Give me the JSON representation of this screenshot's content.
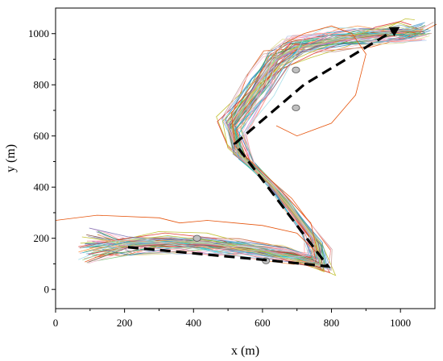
{
  "chart_data": {
    "type": "line",
    "title": "",
    "xlabel": "x (m)",
    "ylabel": "y (m)",
    "xlim": [
      0,
      1100
    ],
    "ylim": [
      -75,
      1100
    ],
    "x_ticks": [
      0,
      200,
      400,
      600,
      800,
      1000
    ],
    "y_ticks": [
      0,
      200,
      400,
      600,
      800,
      1000
    ],
    "x_tick_labels": [
      "0",
      "200",
      "400",
      "600",
      "800",
      "1000"
    ],
    "y_tick_labels": [
      "0",
      "200",
      "400",
      "600",
      "800",
      "1000"
    ],
    "grid": false,
    "legend": "none",
    "obstacles": [
      {
        "x": 410,
        "y": 200,
        "rx": 24,
        "ry": 26
      },
      {
        "x": 610,
        "y": 112,
        "rx": 24,
        "ry": 26
      },
      {
        "x": 697,
        "y": 858,
        "rx": 24,
        "ry": 26
      },
      {
        "x": 697,
        "y": 710,
        "rx": 24,
        "ry": 26
      }
    ],
    "reference_path": {
      "x": [
        210,
        610,
        790,
        520,
        720,
        990
      ],
      "y": [
        165,
        115,
        90,
        570,
        800,
        1020
      ],
      "style": "dashed",
      "color": "#000000"
    },
    "trajectory_center": {
      "x": [
        100,
        210,
        330,
        440,
        560,
        690,
        765,
        755,
        640,
        540,
        510,
        590,
        640,
        700,
        800,
        900,
        1000,
        1060
      ],
      "y": [
        165,
        168,
        180,
        175,
        160,
        130,
        100,
        190,
        390,
        520,
        640,
        800,
        900,
        950,
        975,
        990,
        1005,
        1010
      ]
    },
    "trajectories_count": 60,
    "obstacle_color": "#c0c0c0",
    "trajectory_colors": [
      "#e6550d",
      "#3182bd",
      "#31a354",
      "#756bb1",
      "#de2d26",
      "#fd8d3c",
      "#6baed6",
      "#74c476",
      "#9e9ac8",
      "#e377c2",
      "#17becf",
      "#bcbd22",
      "#8c564b",
      "#ff9896",
      "#aec7e8",
      "#98df8a",
      "#c49c94",
      "#f7b6d2",
      "#9edae5",
      "#dbdb8d"
    ]
  }
}
